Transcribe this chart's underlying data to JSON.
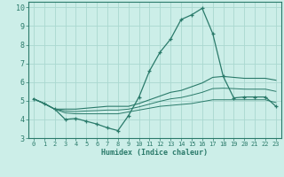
{
  "xlabel": "Humidex (Indice chaleur)",
  "xlim": [
    -0.5,
    23.5
  ],
  "ylim": [
    3,
    10.3
  ],
  "yticks": [
    3,
    4,
    5,
    6,
    7,
    8,
    9,
    10
  ],
  "xticks": [
    0,
    1,
    2,
    3,
    4,
    5,
    6,
    7,
    8,
    9,
    10,
    11,
    12,
    13,
    14,
    15,
    16,
    17,
    18,
    19,
    20,
    21,
    22,
    23
  ],
  "bg_color": "#cceee8",
  "grid_color": "#aad8d0",
  "line_color": "#2a7a6a",
  "series": {
    "main": {
      "x": [
        0,
        1,
        2,
        3,
        4,
        5,
        6,
        7,
        8,
        9,
        10,
        11,
        12,
        13,
        14,
        15,
        16,
        17,
        18,
        19,
        20,
        21,
        22,
        23
      ],
      "y": [
        5.1,
        4.85,
        4.55,
        4.0,
        4.05,
        3.9,
        3.75,
        3.55,
        3.4,
        4.2,
        5.2,
        6.6,
        7.6,
        8.3,
        9.35,
        9.6,
        9.95,
        8.6,
        6.3,
        5.15,
        5.2,
        5.2,
        5.2,
        4.7
      ]
    },
    "upper": {
      "x": [
        0,
        1,
        2,
        3,
        4,
        5,
        6,
        7,
        8,
        9,
        10,
        11,
        12,
        13,
        14,
        15,
        16,
        17,
        18,
        19,
        20,
        21,
        22,
        23
      ],
      "y": [
        5.1,
        4.85,
        4.55,
        4.55,
        4.55,
        4.6,
        4.65,
        4.7,
        4.7,
        4.7,
        4.85,
        5.05,
        5.25,
        5.45,
        5.55,
        5.75,
        5.95,
        6.25,
        6.3,
        6.25,
        6.2,
        6.2,
        6.2,
        6.1
      ]
    },
    "lower": {
      "x": [
        0,
        1,
        2,
        3,
        4,
        5,
        6,
        7,
        8,
        9,
        10,
        11,
        12,
        13,
        14,
        15,
        16,
        17,
        18,
        19,
        20,
        21,
        22,
        23
      ],
      "y": [
        5.1,
        4.85,
        4.55,
        4.35,
        4.3,
        4.3,
        4.3,
        4.3,
        4.3,
        4.4,
        4.5,
        4.6,
        4.7,
        4.75,
        4.8,
        4.85,
        4.95,
        5.05,
        5.05,
        5.05,
        5.05,
        5.05,
        5.05,
        4.9
      ]
    },
    "mid": {
      "x": [
        0,
        1,
        2,
        3,
        4,
        5,
        6,
        7,
        8,
        9,
        10,
        11,
        12,
        13,
        14,
        15,
        16,
        17,
        18,
        19,
        20,
        21,
        22,
        23
      ],
      "y": [
        5.1,
        4.85,
        4.55,
        4.45,
        4.42,
        4.45,
        4.47,
        4.5,
        4.5,
        4.55,
        4.67,
        4.82,
        4.97,
        5.1,
        5.17,
        5.3,
        5.45,
        5.65,
        5.67,
        5.65,
        5.62,
        5.62,
        5.62,
        5.5
      ]
    }
  }
}
